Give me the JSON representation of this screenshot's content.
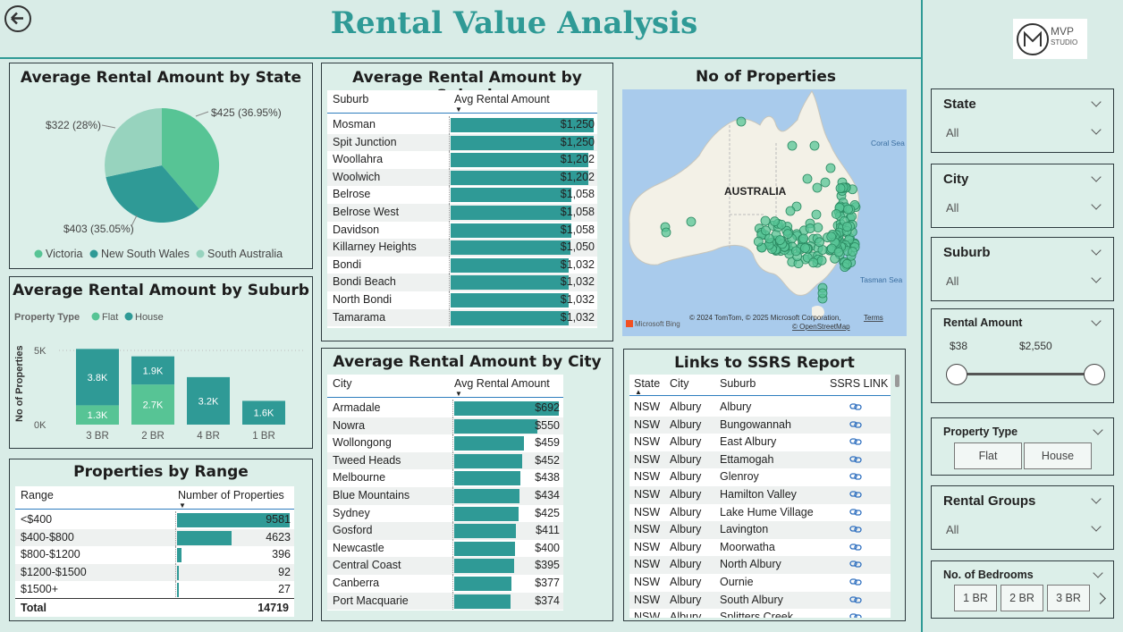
{
  "header": {
    "title": "Rental Value Analysis",
    "logo_text": "MVP",
    "logo_sub": "STUDIO"
  },
  "colors": {
    "teal": "#2f9a96",
    "green": "#57c495",
    "light": "#97d3be",
    "bg": "#d9ece7"
  },
  "pie": {
    "title": "Average Rental Amount by State",
    "labels": [
      "$425 (36.95%)",
      "$403 (35.05%)",
      "$322 (28%)"
    ],
    "legend": [
      "Victoria",
      "New South Wales",
      "South Australia"
    ],
    "chart_data": {
      "type": "pie",
      "categories": [
        "Victoria",
        "New South Wales",
        "South Australia"
      ],
      "values": [
        425,
        403,
        322
      ],
      "percents": [
        36.95,
        35.05,
        28
      ]
    }
  },
  "stacked": {
    "title": "Average Rental Amount by Suburb",
    "legend_title": "Property Type",
    "legend": [
      "Flat",
      "House"
    ],
    "ylabel": "No of Properties",
    "yticks": [
      "5K",
      "0K"
    ],
    "categories": [
      "3 BR",
      "2 BR",
      "4 BR",
      "1 BR"
    ],
    "labels_flat": [
      "1.3K",
      "2.7K",
      "",
      ""
    ],
    "labels_house": [
      "3.8K",
      "1.9K",
      "3.2K",
      "1.6K"
    ],
    "chart_data": {
      "type": "bar",
      "categories": [
        "3 BR",
        "2 BR",
        "4 BR",
        "1 BR"
      ],
      "series": [
        {
          "name": "Flat",
          "values": [
            1300,
            2700,
            0,
            0
          ]
        },
        {
          "name": "House",
          "values": [
            3800,
            1900,
            3200,
            1600
          ]
        }
      ],
      "ylim": [
        0,
        5000
      ]
    }
  },
  "range": {
    "title": "Properties by Range",
    "col1": "Range",
    "col2": "Number of Properties",
    "rows": [
      {
        "name": "<$400",
        "value": "9581"
      },
      {
        "name": "$400-$800",
        "value": "4623"
      },
      {
        "name": "$800-$1200",
        "value": "396"
      },
      {
        "name": "$1200-$1500",
        "value": "92"
      },
      {
        "name": "$1500+",
        "value": "27"
      }
    ],
    "total_label": "Total",
    "total_value": "14719",
    "chart_data": {
      "type": "table",
      "categories": [
        "<$400",
        "$400-$800",
        "$800-$1200",
        "$1200-$1500",
        "$1500+"
      ],
      "values": [
        9581,
        4623,
        396,
        92,
        27
      ]
    }
  },
  "suburb": {
    "title": "Average Rental Amount by Suburb",
    "col1": "Suburb",
    "col2": "Avg Rental Amount",
    "rows": [
      {
        "name": "Mosman",
        "value": "$1,250"
      },
      {
        "name": "Spit Junction",
        "value": "$1,250"
      },
      {
        "name": "Woollahra",
        "value": "$1,202"
      },
      {
        "name": "Woolwich",
        "value": "$1,202"
      },
      {
        "name": "Belrose",
        "value": "$1,058"
      },
      {
        "name": "Belrose West",
        "value": "$1,058"
      },
      {
        "name": "Davidson",
        "value": "$1,058"
      },
      {
        "name": "Killarney Heights",
        "value": "$1,050"
      },
      {
        "name": "Bondi",
        "value": "$1,032"
      },
      {
        "name": "Bondi Beach",
        "value": "$1,032"
      },
      {
        "name": "North Bondi",
        "value": "$1,032"
      },
      {
        "name": "Tamarama",
        "value": "$1,032"
      }
    ],
    "chart_data": {
      "type": "table",
      "categories": [
        "Mosman",
        "Spit Junction",
        "Woollahra",
        "Woolwich",
        "Belrose",
        "Belrose West",
        "Davidson",
        "Killarney Heights",
        "Bondi",
        "Bondi Beach",
        "North Bondi",
        "Tamarama"
      ],
      "values": [
        1250,
        1250,
        1202,
        1202,
        1058,
        1058,
        1058,
        1050,
        1032,
        1032,
        1032,
        1032
      ]
    }
  },
  "city": {
    "title": "Average Rental Amount by City",
    "col1": "City",
    "col2": "Avg Rental Amount",
    "rows": [
      {
        "name": "Armadale",
        "value": "$692"
      },
      {
        "name": "Nowra",
        "value": "$550"
      },
      {
        "name": "Wollongong",
        "value": "$459"
      },
      {
        "name": "Tweed Heads",
        "value": "$452"
      },
      {
        "name": "Melbourne",
        "value": "$438"
      },
      {
        "name": "Blue Mountains",
        "value": "$434"
      },
      {
        "name": "Sydney",
        "value": "$425"
      },
      {
        "name": "Gosford",
        "value": "$411"
      },
      {
        "name": "Newcastle",
        "value": "$400"
      },
      {
        "name": "Central Coast",
        "value": "$395"
      },
      {
        "name": "Canberra",
        "value": "$377"
      },
      {
        "name": "Port Macquarie",
        "value": "$374"
      }
    ],
    "chart_data": {
      "type": "table",
      "categories": [
        "Armadale",
        "Nowra",
        "Wollongong",
        "Tweed Heads",
        "Melbourne",
        "Blue Mountains",
        "Sydney",
        "Gosford",
        "Newcastle",
        "Central Coast",
        "Canberra",
        "Port Macquarie"
      ],
      "values": [
        692,
        550,
        459,
        452,
        438,
        434,
        425,
        411,
        400,
        395,
        377,
        374
      ]
    }
  },
  "map": {
    "title": "No of Properties",
    "country": "AUSTRALIA",
    "coral": "Coral Sea",
    "tasman": "Tasman Sea",
    "credit": "© 2024 TomTom, © 2025 Microsoft Corporation,",
    "terms": "Terms",
    "osm": "© OpenStreetMap",
    "bing": "Microsoft Bing"
  },
  "ssrs": {
    "title": "Links to SSRS Report",
    "cols": [
      "State",
      "City",
      "Suburb",
      "SSRS LINK"
    ],
    "rows": [
      [
        "NSW",
        "Albury",
        "Albury"
      ],
      [
        "NSW",
        "Albury",
        "Bungowannah"
      ],
      [
        "NSW",
        "Albury",
        "East Albury"
      ],
      [
        "NSW",
        "Albury",
        "Ettamogah"
      ],
      [
        "NSW",
        "Albury",
        "Glenroy"
      ],
      [
        "NSW",
        "Albury",
        "Hamilton Valley"
      ],
      [
        "NSW",
        "Albury",
        "Lake Hume Village"
      ],
      [
        "NSW",
        "Albury",
        "Lavington"
      ],
      [
        "NSW",
        "Albury",
        "Moorwatha"
      ],
      [
        "NSW",
        "Albury",
        "North Albury"
      ],
      [
        "NSW",
        "Albury",
        "Ournie"
      ],
      [
        "NSW",
        "Albury",
        "South Albury"
      ],
      [
        "NSW",
        "Albury",
        "Splitters Creek"
      ]
    ]
  },
  "slicers": {
    "state": {
      "title": "State",
      "value": "All"
    },
    "city": {
      "title": "City",
      "value": "All"
    },
    "suburb": {
      "title": "Suburb",
      "value": "All"
    },
    "rental": {
      "title": "Rental Amount",
      "min": "$38",
      "max": "$2,550"
    },
    "ptype": {
      "title": "Property Type",
      "options": [
        "Flat",
        "House"
      ]
    },
    "groups": {
      "title": "Rental Groups",
      "value": "All"
    },
    "bedrooms": {
      "title": "No. of Bedrooms",
      "options": [
        "1 BR",
        "2 BR",
        "3 BR"
      ]
    }
  }
}
